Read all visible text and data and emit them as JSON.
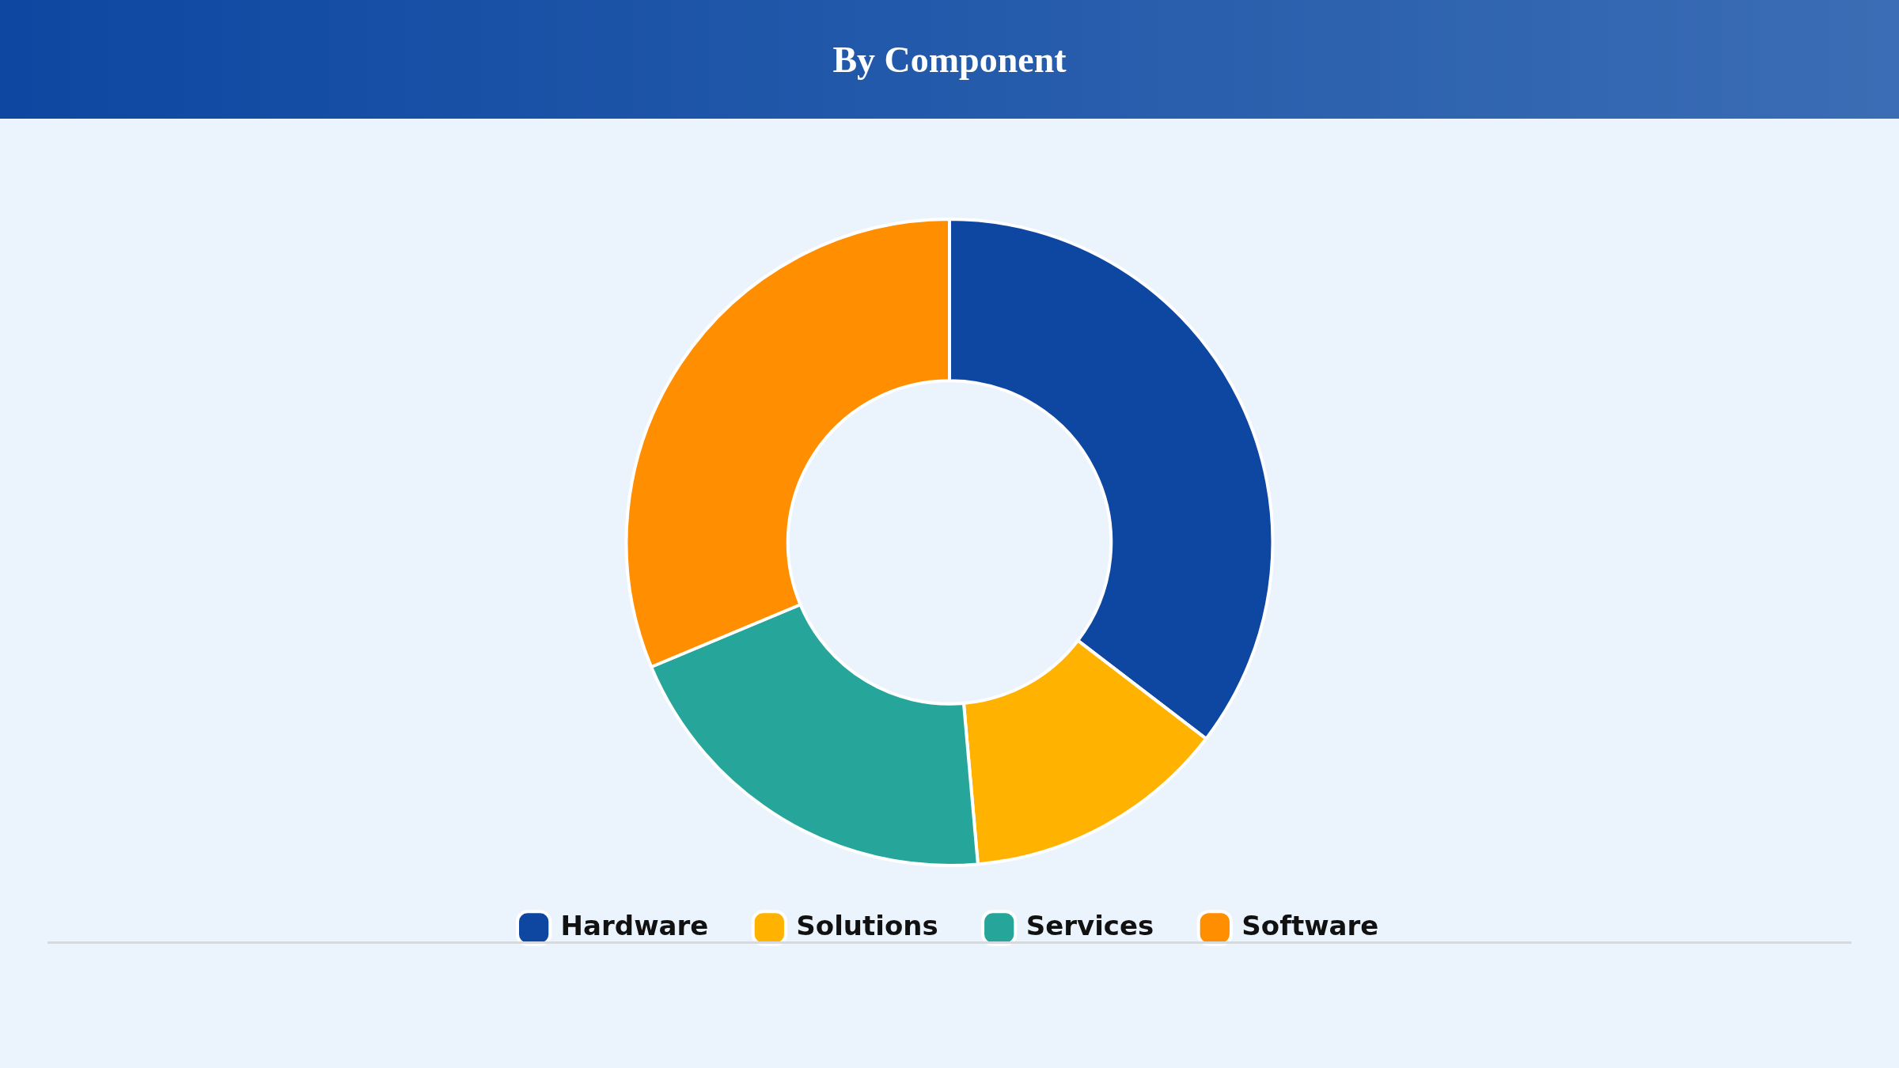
{
  "chart_data": {
    "type": "donut",
    "title": "By Component",
    "categories": [
      "Hardware",
      "Solutions",
      "Services",
      "Software"
    ],
    "values": [
      35.4,
      13.2,
      20.1,
      31.3
    ],
    "colors": [
      "#0d47a1",
      "#ffb300",
      "#26a69a",
      "#ff8f00"
    ],
    "legend": "bottom"
  }
}
